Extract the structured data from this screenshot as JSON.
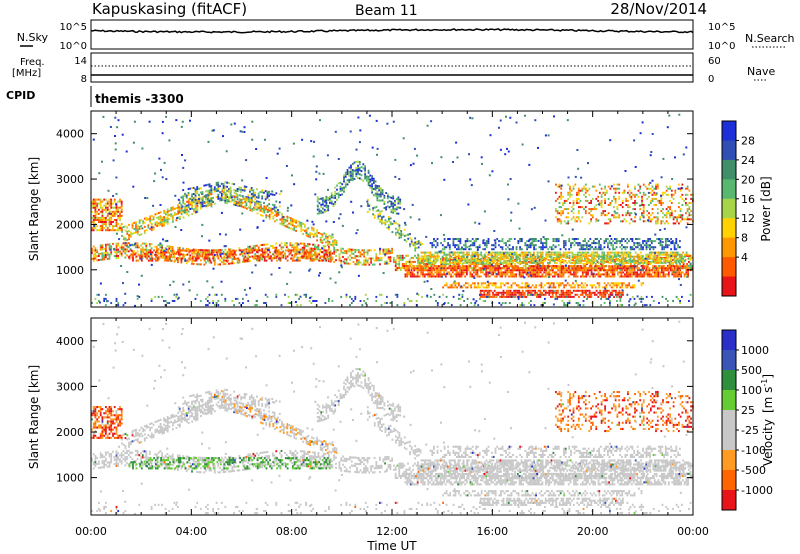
{
  "header": {
    "station": "Kapuskasing (fitACF)",
    "beam": "Beam 11",
    "date": "28/Nov/2014"
  },
  "noise_panel": {
    "left_label": "N.Sky",
    "right_label": "N.Search",
    "left_ticks": [
      "10^5",
      "10^0"
    ],
    "right_ticks": [
      "10^5",
      "10^0"
    ]
  },
  "freq_panel": {
    "left_label_1": "Freq.",
    "left_label_2": "[MHz]",
    "left_ticks": [
      "14",
      "8"
    ],
    "right_label": "Nave",
    "right_ticks": [
      "60",
      "0"
    ]
  },
  "cpid": {
    "label": "CPID",
    "value": "themis -3300"
  },
  "colors": {
    "power": [
      "#1c2fd8",
      "#2f4fb5",
      "#3f8f6a",
      "#58b870",
      "#a7d54a",
      "#ffd200",
      "#ff9800",
      "#ff5a00",
      "#e8141a"
    ],
    "velocity": [
      "#2a2fc9",
      "#3a55b8",
      "#2e8f3c",
      "#66cc33",
      "#c8c8c8",
      "#c8c8c8",
      "#ff9a22",
      "#ff6600",
      "#e8141a"
    ]
  },
  "chart_data": [
    {
      "type": "heatmap",
      "panel": "power",
      "ylabel": "Slant Range [km]",
      "yticks": [
        "4000",
        "3000",
        "2000",
        "1000"
      ],
      "ylim": [
        180,
        4500
      ],
      "xlim": [
        0,
        24
      ],
      "xticks": [
        "00:00",
        "04:00",
        "08:00",
        "12:00",
        "16:00",
        "20:00",
        "00:00"
      ],
      "colorbar_label": "Power [dB]",
      "colorbar_ticks": [
        "28",
        "24",
        "20",
        "16",
        "12",
        "8",
        "4"
      ]
    },
    {
      "type": "heatmap",
      "panel": "velocity",
      "ylabel": "Slant Range [km]",
      "yticks": [
        "4000",
        "3000",
        "2000",
        "1000"
      ],
      "ylim": [
        180,
        4500
      ],
      "xlim": [
        0,
        24
      ],
      "xticks": [
        "00:00",
        "04:00",
        "08:00",
        "12:00",
        "16:00",
        "20:00",
        "00:00"
      ],
      "xlabel": "Time UT",
      "colorbar_label_main": "Velocity",
      "colorbar_label_unit": "[m s",
      "colorbar_label_exp": "-1",
      "colorbar_ticks": [
        "1000",
        "500",
        "100",
        "25",
        "-25",
        "-100",
        "-500",
        "-1000"
      ]
    }
  ]
}
